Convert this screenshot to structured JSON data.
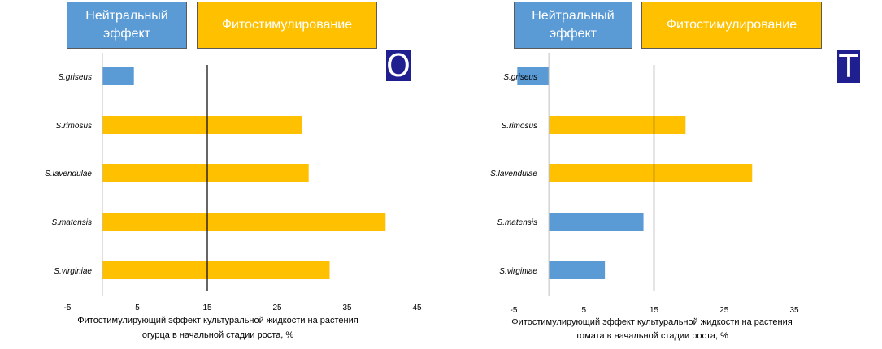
{
  "legend": {
    "neutral": "Нейтральный\nэффект",
    "stimulation": "Фитостимулирование",
    "neutral_color": "#5b9bd5",
    "stimulation_color": "#ffc000"
  },
  "chart_data": [
    {
      "type": "bar",
      "orientation": "horizontal",
      "badge": "O",
      "categories": [
        "S.griseus",
        "S.rimosus",
        "S.lavendulae",
        "S.matensis",
        "S.virginiae"
      ],
      "values": [
        4.5,
        28.5,
        29.5,
        40.5,
        32.5
      ],
      "bar_colors": [
        "#5b9bd5",
        "#ffc000",
        "#ffc000",
        "#ffc000",
        "#ffc000"
      ],
      "xlim": [
        -5,
        45
      ],
      "xticks": [
        -5,
        5,
        15,
        25,
        35,
        45
      ],
      "threshold": 15,
      "xlabel_lines": [
        "Фитостимулирующий эффект культуральной жидкости на растения",
        "огурца в начальной стадии роста, %"
      ],
      "grid": false
    },
    {
      "type": "bar",
      "orientation": "horizontal",
      "badge": "T",
      "categories": [
        "S.griseus",
        "S.rimosus",
        "S.lavendulae",
        "S.matensis",
        "S.virginiae"
      ],
      "values": [
        -4.5,
        19.5,
        29,
        13.5,
        8
      ],
      "bar_colors": [
        "#5b9bd5",
        "#ffc000",
        "#ffc000",
        "#5b9bd5",
        "#5b9bd5"
      ],
      "xlim": [
        -5,
        35
      ],
      "xticks": [
        -5,
        5,
        15,
        25,
        35
      ],
      "threshold": 15,
      "xlabel_lines": [
        "Фитостимулирующий эффект культуральной жидкости на растения",
        "томата в начальной стадии роста, %"
      ],
      "grid": false
    }
  ]
}
